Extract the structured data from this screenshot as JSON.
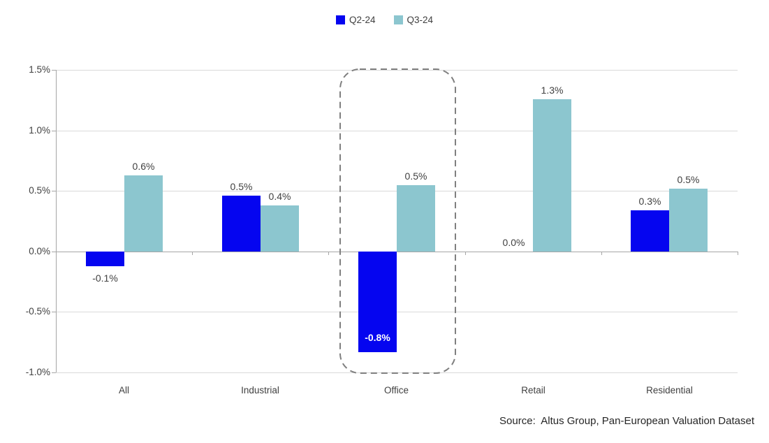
{
  "source_note": "Source:  Altus Group, Pan-European Valuation Dataset",
  "legend": {
    "items": [
      {
        "label": "Q2-24",
        "color": "#0505f0"
      },
      {
        "label": "Q3-24",
        "color": "#8cc6cf"
      }
    ]
  },
  "chart_data": {
    "type": "bar",
    "categories": [
      "All",
      "Industrial",
      "Office",
      "Retail",
      "Residential"
    ],
    "series": [
      {
        "name": "Q2-24",
        "color": "#0505f0",
        "values": [
          -0.12,
          0.46,
          -0.83,
          0.0,
          0.34
        ],
        "labels": [
          "-0.1%",
          "0.5%",
          "-0.8%",
          "0.0%",
          "0.3%"
        ]
      },
      {
        "name": "Q3-24",
        "color": "#8cc6cf",
        "values": [
          0.63,
          0.38,
          0.55,
          1.26,
          0.52
        ],
        "labels": [
          "0.6%",
          "0.4%",
          "0.5%",
          "1.3%",
          "0.5%"
        ]
      }
    ],
    "title": "",
    "xlabel": "",
    "ylabel": "",
    "ylim": [
      -1.0,
      1.5
    ],
    "ytick_step": 0.5,
    "ytick_labels": [
      "1.5%",
      "1.0%",
      "0.5%",
      "0.0%",
      "-0.5%",
      "-1.0%"
    ],
    "grid": true,
    "legend_position": "top-center",
    "highlight": {
      "category": "Office",
      "style": "dashed-rounded-rect"
    },
    "colors": {
      "gridline": "#d9d9d9",
      "axis": "#a6a6a6",
      "label_text": "#404040",
      "inside_label_text": "#ffffff",
      "highlight_border": "#7f7f7f"
    }
  }
}
